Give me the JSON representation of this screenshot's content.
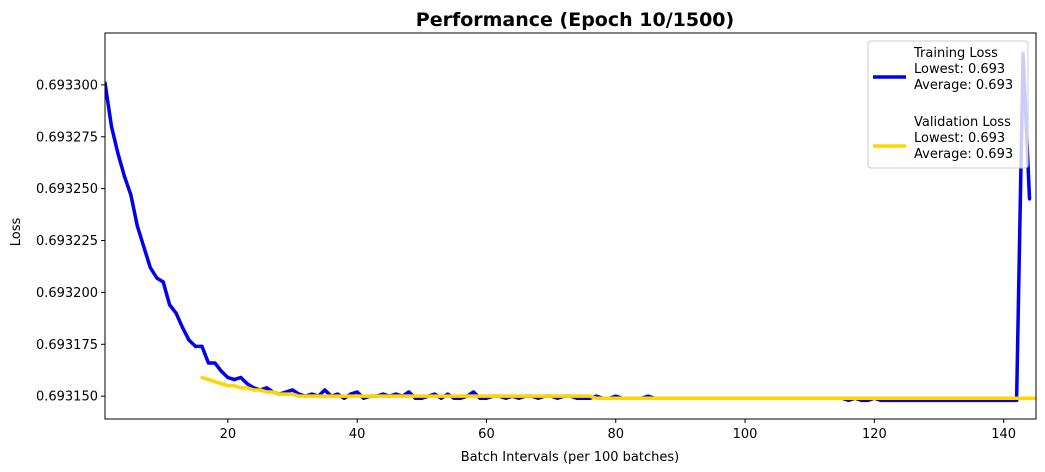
{
  "chart_data": {
    "type": "line",
    "title": "Performance (Epoch 10/1500)",
    "xlabel": "Batch Intervals (per 100 batches)",
    "ylabel": "Loss",
    "xlim": [
      1,
      145
    ],
    "ylim": [
      0.693139,
      0.693325
    ],
    "x_ticks": [
      20,
      40,
      60,
      80,
      100,
      120,
      140
    ],
    "x_tick_labels": [
      "20",
      "40",
      "60",
      "80",
      "100",
      "120",
      "140"
    ],
    "y_ticks": [
      0.69315,
      0.693175,
      0.6932,
      0.693225,
      0.69325,
      0.693275,
      0.6933
    ],
    "y_tick_labels": [
      "0.693150",
      "0.693175",
      "0.693200",
      "0.693225",
      "0.693250",
      "0.693275",
      "0.693300"
    ],
    "grid": false,
    "legend_position": "top-right",
    "series": [
      {
        "name": "Training Loss",
        "color": "#0000ee",
        "legend_lines": [
          "Training Loss",
          "Lowest: 0.693",
          "Average: 0.693"
        ],
        "x_start": 1,
        "values": [
          0.693301,
          0.69328,
          0.693267,
          0.693256,
          0.693247,
          0.693232,
          0.693222,
          0.693212,
          0.693207,
          0.693205,
          0.693194,
          0.69319,
          0.693183,
          0.693177,
          0.693174,
          0.693174,
          0.693166,
          0.693166,
          0.693162,
          0.693159,
          0.693158,
          0.693159,
          0.693156,
          0.693154,
          0.693153,
          0.693154,
          0.693152,
          0.693151,
          0.693152,
          0.693153,
          0.693151,
          0.69315,
          0.693151,
          0.69315,
          0.693153,
          0.69315,
          0.693151,
          0.693149,
          0.693151,
          0.693152,
          0.693149,
          0.69315,
          0.69315,
          0.693151,
          0.69315,
          0.693151,
          0.69315,
          0.693152,
          0.693149,
          0.693149,
          0.69315,
          0.693151,
          0.693149,
          0.693151,
          0.693149,
          0.693149,
          0.69315,
          0.693152,
          0.693149,
          0.693149,
          0.69315,
          0.69315,
          0.693149,
          0.69315,
          0.693149,
          0.69315,
          0.69315,
          0.693149,
          0.69315,
          0.69315,
          0.693149,
          0.69315,
          0.69315,
          0.693149,
          0.693149,
          0.693149,
          0.69315,
          0.693149,
          0.693149,
          0.69315,
          0.693149,
          0.693149,
          0.693149,
          0.693149,
          0.69315,
          0.693149,
          0.693149,
          0.693149,
          0.693149,
          0.693149,
          0.693149,
          0.693149,
          0.693149,
          0.693149,
          0.693149,
          0.693149,
          0.693149,
          0.693149,
          0.693149,
          0.693149,
          0.693149,
          0.693149,
          0.693149,
          0.693149,
          0.693149,
          0.693149,
          0.693149,
          0.693149,
          0.693149,
          0.693149,
          0.693149,
          0.693149,
          0.693149,
          0.693149,
          0.693149,
          0.693148,
          0.693149,
          0.693148,
          0.693148,
          0.693149,
          0.693148,
          0.693148,
          0.693148,
          0.693148,
          0.693148,
          0.693148,
          0.693148,
          0.693148,
          0.693148,
          0.693148,
          0.693148,
          0.693148,
          0.693148,
          0.693148,
          0.693148,
          0.693148,
          0.693148,
          0.693148,
          0.693148,
          0.693148,
          0.693148,
          0.693148,
          0.693315,
          0.693245
        ]
      },
      {
        "name": "Validation Loss",
        "color": "#ffd700",
        "legend_lines": [
          "Validation Loss",
          "Lowest: 0.693",
          "Average: 0.693"
        ],
        "x_start": 16,
        "values": [
          0.693159,
          0.693158,
          0.693157,
          0.693156,
          0.693155,
          0.693155,
          0.693154,
          0.693154,
          0.693153,
          0.693153,
          0.693152,
          0.693152,
          0.693151,
          0.693151,
          0.693151,
          0.69315,
          0.69315,
          0.69315,
          0.69315,
          0.69315,
          0.69315,
          0.69315,
          0.69315,
          0.69315,
          0.69315,
          0.69315,
          0.69315,
          0.69315,
          0.69315,
          0.69315,
          0.69315,
          0.69315,
          0.69315,
          0.69315,
          0.69315,
          0.69315,
          0.69315,
          0.69315,
          0.69315,
          0.69315,
          0.69315,
          0.69315,
          0.69315,
          0.69315,
          0.69315,
          0.69315,
          0.69315,
          0.69315,
          0.69315,
          0.69315,
          0.69315,
          0.69315,
          0.69315,
          0.69315,
          0.69315,
          0.69315,
          0.69315,
          0.69315,
          0.69315,
          0.69315,
          0.69315,
          0.693149,
          0.693149,
          0.693149,
          0.693149,
          0.693149,
          0.693149,
          0.693149,
          0.693149,
          0.693149,
          0.693149,
          0.693149,
          0.693149,
          0.693149,
          0.693149,
          0.693149,
          0.693149,
          0.693149,
          0.693149,
          0.693149,
          0.693149,
          0.693149,
          0.693149,
          0.693149,
          0.693149,
          0.693149,
          0.693149,
          0.693149,
          0.693149,
          0.693149,
          0.693149,
          0.693149,
          0.693149,
          0.693149,
          0.693149,
          0.693149,
          0.693149,
          0.693149,
          0.693149,
          0.693149,
          0.693149,
          0.693149,
          0.693149,
          0.693149,
          0.693149,
          0.693149,
          0.693149,
          0.693149,
          0.693149,
          0.693149,
          0.693149,
          0.693149,
          0.693149,
          0.693149,
          0.693149,
          0.693149,
          0.693149,
          0.693149,
          0.693149,
          0.693149,
          0.693149,
          0.693149,
          0.693149,
          0.693149,
          0.693149,
          0.693149,
          0.693149,
          0.693149,
          0.693149,
          0.693149
        ]
      }
    ]
  }
}
